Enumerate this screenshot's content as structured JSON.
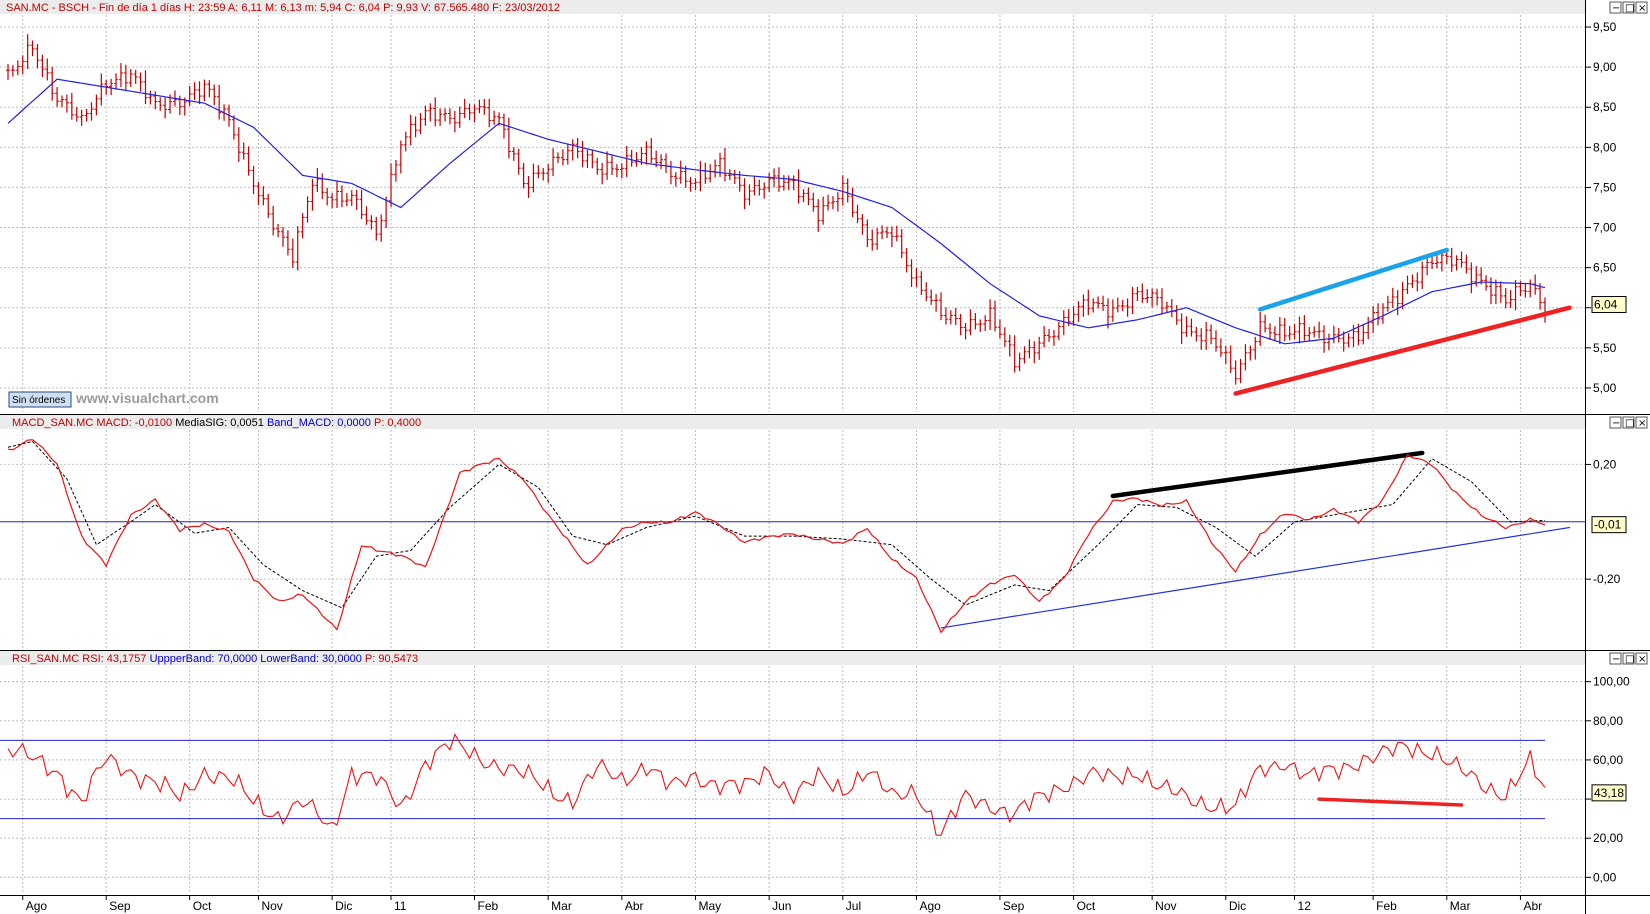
{
  "chart_data": [
    {
      "type": "line",
      "panel": "price",
      "title_parts": [
        {
          "text": "SAN.MC - BSCH - Fin de día 1 días",
          "color": "#c00000"
        },
        {
          "text": "H: 23:59",
          "color": "#c00000"
        },
        {
          "text": "A: 6,11",
          "color": "#c00000"
        },
        {
          "text": "M: 6,13",
          "color": "#c00000"
        },
        {
          "text": "m: 5,94",
          "color": "#c00000"
        },
        {
          "text": "C: 6,04",
          "color": "#c00000"
        },
        {
          "text": "P: 9,93",
          "color": "#c00000"
        },
        {
          "text": "V: 67.565.480",
          "color": "#c00000"
        },
        {
          "text": "F: 23/03/2012",
          "color": "#c00000"
        }
      ],
      "ylim": [
        4.7,
        9.65
      ],
      "y_ticks": [
        5.0,
        5.5,
        6.0,
        6.5,
        7.0,
        7.5,
        8.0,
        8.5,
        9.0,
        9.5
      ],
      "y_tick_labels": [
        "5,00",
        "5,50",
        "",
        "6,50",
        "7,00",
        "7,50",
        "8,00",
        "8,50",
        "9,00",
        "9,50"
      ],
      "last_value_label": "6,04",
      "last_value": 6.04,
      "price_keypoints": [
        [
          0,
          8.85
        ],
        [
          5,
          9.3
        ],
        [
          10,
          8.6
        ],
        [
          15,
          8.3
        ],
        [
          20,
          8.85
        ],
        [
          25,
          8.9
        ],
        [
          30,
          8.5
        ],
        [
          35,
          8.6
        ],
        [
          40,
          8.75
        ],
        [
          45,
          8.3
        ],
        [
          50,
          7.6
        ],
        [
          55,
          6.9
        ],
        [
          58,
          6.6
        ],
        [
          62,
          7.6
        ],
        [
          66,
          7.4
        ],
        [
          70,
          7.35
        ],
        [
          75,
          6.9
        ],
        [
          80,
          8.1
        ],
        [
          85,
          8.4
        ],
        [
          90,
          8.35
        ],
        [
          95,
          8.55
        ],
        [
          100,
          8.3
        ],
        [
          105,
          7.55
        ],
        [
          110,
          7.8
        ],
        [
          115,
          7.95
        ],
        [
          120,
          7.75
        ],
        [
          125,
          7.8
        ],
        [
          130,
          7.9
        ],
        [
          135,
          7.7
        ],
        [
          140,
          7.6
        ],
        [
          145,
          7.75
        ],
        [
          150,
          7.45
        ],
        [
          155,
          7.6
        ],
        [
          160,
          7.5
        ],
        [
          165,
          7.2
        ],
        [
          170,
          7.5
        ],
        [
          175,
          6.8
        ],
        [
          180,
          7.0
        ],
        [
          185,
          6.3
        ],
        [
          190,
          5.9
        ],
        [
          195,
          5.8
        ],
        [
          200,
          5.9
        ],
        [
          205,
          5.3
        ],
        [
          210,
          5.6
        ],
        [
          215,
          5.8
        ],
        [
          220,
          6.05
        ],
        [
          225,
          6.0
        ],
        [
          230,
          6.15
        ],
        [
          235,
          6.05
        ],
        [
          240,
          5.75
        ],
        [
          245,
          5.6
        ],
        [
          250,
          5.15
        ],
        [
          255,
          5.8
        ],
        [
          260,
          5.65
        ],
        [
          265,
          5.7
        ],
        [
          270,
          5.65
        ],
        [
          275,
          5.6
        ],
        [
          280,
          6.0
        ],
        [
          285,
          6.3
        ],
        [
          290,
          6.55
        ],
        [
          295,
          6.6
        ],
        [
          300,
          6.35
        ],
        [
          305,
          6.05
        ],
        [
          310,
          6.3
        ],
        [
          313,
          6.04
        ]
      ],
      "ma_keypoints": [
        [
          0,
          8.3
        ],
        [
          10,
          8.85
        ],
        [
          20,
          8.75
        ],
        [
          30,
          8.65
        ],
        [
          40,
          8.55
        ],
        [
          50,
          8.25
        ],
        [
          60,
          7.65
        ],
        [
          70,
          7.55
        ],
        [
          80,
          7.25
        ],
        [
          90,
          7.8
        ],
        [
          100,
          8.3
        ],
        [
          110,
          8.1
        ],
        [
          120,
          7.95
        ],
        [
          130,
          7.8
        ],
        [
          140,
          7.72
        ],
        [
          150,
          7.65
        ],
        [
          160,
          7.6
        ],
        [
          170,
          7.45
        ],
        [
          180,
          7.25
        ],
        [
          190,
          6.8
        ],
        [
          200,
          6.3
        ],
        [
          210,
          5.9
        ],
        [
          220,
          5.75
        ],
        [
          230,
          5.85
        ],
        [
          240,
          6.0
        ],
        [
          250,
          5.75
        ],
        [
          260,
          5.55
        ],
        [
          270,
          5.62
        ],
        [
          280,
          5.9
        ],
        [
          290,
          6.2
        ],
        [
          300,
          6.32
        ],
        [
          310,
          6.3
        ],
        [
          313,
          6.25
        ]
      ],
      "trendlines": [
        {
          "name": "resistance",
          "color": "#1aa3e8",
          "points": [
            [
              255,
              5.98
            ],
            [
              293,
              6.72
            ]
          ]
        },
        {
          "name": "support",
          "color": "#ee2222",
          "points": [
            [
              250,
              4.93
            ],
            [
              318,
              6.0
            ]
          ]
        }
      ]
    },
    {
      "type": "line",
      "panel": "macd",
      "title_parts": [
        {
          "text": "MACD_SAN.MC",
          "color": "#c00000"
        },
        {
          "text": "MACD: -0,0100",
          "color": "#c00000"
        },
        {
          "text": "MediaSIG: 0,0051",
          "color": "#000000"
        },
        {
          "text": "Band_MACD: 0,0000",
          "color": "#0000cc"
        },
        {
          "text": "P: 0,4000",
          "color": "#c00000"
        }
      ],
      "ylim": [
        -0.44,
        0.32
      ],
      "y_ticks": [
        0.2,
        -0.2
      ],
      "y_tick_labels": [
        "0,20",
        "-0,20"
      ],
      "last_value_label": "-0,01",
      "last_value": -0.01,
      "zero_line": 0,
      "macd_keypoints": [
        [
          0,
          0.25
        ],
        [
          5,
          0.29
        ],
        [
          10,
          0.2
        ],
        [
          15,
          -0.05
        ],
        [
          20,
          -0.15
        ],
        [
          25,
          0.02
        ],
        [
          30,
          0.08
        ],
        [
          35,
          -0.03
        ],
        [
          40,
          -0.01
        ],
        [
          45,
          -0.03
        ],
        [
          50,
          -0.2
        ],
        [
          55,
          -0.28
        ],
        [
          60,
          -0.25
        ],
        [
          67,
          -0.38
        ],
        [
          72,
          -0.08
        ],
        [
          80,
          -0.12
        ],
        [
          85,
          -0.16
        ],
        [
          92,
          0.17
        ],
        [
          100,
          0.22
        ],
        [
          105,
          0.15
        ],
        [
          110,
          0.02
        ],
        [
          118,
          -0.15
        ],
        [
          125,
          -0.03
        ],
        [
          130,
          0.0
        ],
        [
          135,
          0.0
        ],
        [
          140,
          0.03
        ],
        [
          145,
          -0.01
        ],
        [
          150,
          -0.07
        ],
        [
          160,
          -0.04
        ],
        [
          170,
          -0.08
        ],
        [
          175,
          -0.02
        ],
        [
          180,
          -0.13
        ],
        [
          185,
          -0.2
        ],
        [
          190,
          -0.38
        ],
        [
          195,
          -0.28
        ],
        [
          200,
          -0.22
        ],
        [
          205,
          -0.18
        ],
        [
          210,
          -0.28
        ],
        [
          215,
          -0.2
        ],
        [
          220,
          -0.04
        ],
        [
          225,
          0.07
        ],
        [
          230,
          0.08
        ],
        [
          235,
          0.06
        ],
        [
          240,
          0.07
        ],
        [
          245,
          -0.07
        ],
        [
          250,
          -0.17
        ],
        [
          255,
          -0.05
        ],
        [
          260,
          0.03
        ],
        [
          265,
          0.01
        ],
        [
          270,
          0.04
        ],
        [
          275,
          0.0
        ],
        [
          280,
          0.08
        ],
        [
          285,
          0.23
        ],
        [
          290,
          0.2
        ],
        [
          295,
          0.1
        ],
        [
          300,
          0.02
        ],
        [
          305,
          -0.02
        ],
        [
          310,
          0.01
        ],
        [
          313,
          -0.01
        ]
      ],
      "signal_keypoints": [
        [
          0,
          0.26
        ],
        [
          5,
          0.28
        ],
        [
          12,
          0.15
        ],
        [
          18,
          -0.08
        ],
        [
          25,
          0.0
        ],
        [
          30,
          0.06
        ],
        [
          38,
          -0.04
        ],
        [
          45,
          -0.02
        ],
        [
          52,
          -0.15
        ],
        [
          60,
          -0.24
        ],
        [
          68,
          -0.3
        ],
        [
          75,
          -0.12
        ],
        [
          82,
          -0.1
        ],
        [
          90,
          0.05
        ],
        [
          100,
          0.2
        ],
        [
          108,
          0.12
        ],
        [
          115,
          -0.05
        ],
        [
          122,
          -0.08
        ],
        [
          130,
          -0.02
        ],
        [
          140,
          0.02
        ],
        [
          150,
          -0.05
        ],
        [
          160,
          -0.05
        ],
        [
          170,
          -0.06
        ],
        [
          180,
          -0.08
        ],
        [
          188,
          -0.2
        ],
        [
          195,
          -0.29
        ],
        [
          205,
          -0.22
        ],
        [
          212,
          -0.24
        ],
        [
          222,
          -0.08
        ],
        [
          230,
          0.06
        ],
        [
          238,
          0.05
        ],
        [
          246,
          -0.02
        ],
        [
          254,
          -0.12
        ],
        [
          262,
          0.0
        ],
        [
          272,
          0.03
        ],
        [
          282,
          0.06
        ],
        [
          290,
          0.22
        ],
        [
          298,
          0.14
        ],
        [
          306,
          0.0
        ],
        [
          313,
          0.005
        ]
      ],
      "trendlines": [
        {
          "name": "macd-bearish-divergence",
          "color": "#000000",
          "points": [
            [
              225,
              0.09
            ],
            [
              288,
              0.24
            ]
          ]
        },
        {
          "name": "macd-support",
          "color": "#2233dd",
          "points": [
            [
              190,
              -0.37
            ],
            [
              318,
              -0.02
            ]
          ]
        }
      ]
    },
    {
      "type": "line",
      "panel": "rsi",
      "title_parts": [
        {
          "text": "RSI_SAN.MC",
          "color": "#c00000"
        },
        {
          "text": "RSI: 43,1757",
          "color": "#c00000"
        },
        {
          "text": "UppperBand: 70,0000",
          "color": "#0000cc"
        },
        {
          "text": "LowerBand: 30,0000",
          "color": "#0000cc"
        },
        {
          "text": "P: 90,5473",
          "color": "#c00000"
        }
      ],
      "ylim": [
        -8,
        108
      ],
      "y_ticks": [
        0,
        20,
        40,
        60,
        80,
        100
      ],
      "y_tick_labels": [
        "0,00",
        "20,00",
        "",
        "60,00",
        "80,00",
        "100,00"
      ],
      "last_value_label": "43,18",
      "last_value": 43.18,
      "bands": [
        70,
        30
      ],
      "rsi_keypoints": [
        [
          0,
          65
        ],
        [
          5,
          60
        ],
        [
          10,
          55
        ],
        [
          15,
          38
        ],
        [
          20,
          60
        ],
        [
          25,
          55
        ],
        [
          30,
          48
        ],
        [
          35,
          40
        ],
        [
          40,
          55
        ],
        [
          45,
          50
        ],
        [
          50,
          38
        ],
        [
          55,
          32
        ],
        [
          60,
          38
        ],
        [
          66,
          24
        ],
        [
          70,
          55
        ],
        [
          75,
          50
        ],
        [
          80,
          35
        ],
        [
          85,
          60
        ],
        [
          90,
          68
        ],
        [
          95,
          62
        ],
        [
          100,
          58
        ],
        [
          105,
          52
        ],
        [
          110,
          45
        ],
        [
          115,
          40
        ],
        [
          120,
          55
        ],
        [
          125,
          50
        ],
        [
          130,
          58
        ],
        [
          135,
          45
        ],
        [
          140,
          52
        ],
        [
          145,
          48
        ],
        [
          150,
          45
        ],
        [
          155,
          55
        ],
        [
          160,
          42
        ],
        [
          165,
          50
        ],
        [
          170,
          45
        ],
        [
          175,
          55
        ],
        [
          180,
          40
        ],
        [
          185,
          45
        ],
        [
          190,
          22
        ],
        [
          195,
          40
        ],
        [
          200,
          38
        ],
        [
          205,
          32
        ],
        [
          210,
          40
        ],
        [
          215,
          48
        ],
        [
          220,
          52
        ],
        [
          225,
          50
        ],
        [
          230,
          55
        ],
        [
          235,
          45
        ],
        [
          240,
          40
        ],
        [
          245,
          38
        ],
        [
          250,
          35
        ],
        [
          255,
          55
        ],
        [
          260,
          60
        ],
        [
          265,
          50
        ],
        [
          270,
          55
        ],
        [
          275,
          60
        ],
        [
          280,
          62
        ],
        [
          285,
          67
        ],
        [
          290,
          65
        ],
        [
          295,
          55
        ],
        [
          300,
          48
        ],
        [
          305,
          43
        ],
        [
          310,
          58
        ],
        [
          313,
          43
        ]
      ],
      "trendlines": [
        {
          "name": "rsi-support",
          "color": "#ee2222",
          "points": [
            [
              267,
              40
            ],
            [
              296,
              37
            ]
          ]
        }
      ]
    }
  ],
  "x_axis": {
    "n_bars": 314,
    "months": [
      {
        "label": "Ago",
        "bar": 3
      },
      {
        "label": "Sep",
        "bar": 20
      },
      {
        "label": "Oct",
        "bar": 37
      },
      {
        "label": "Nov",
        "bar": 51
      },
      {
        "label": "Dic",
        "bar": 66
      },
      {
        "label": "11",
        "bar": 78
      },
      {
        "label": "Feb",
        "bar": 95
      },
      {
        "label": "Mar",
        "bar": 110
      },
      {
        "label": "Abr",
        "bar": 125
      },
      {
        "label": "May",
        "bar": 140
      },
      {
        "label": "Jun",
        "bar": 155
      },
      {
        "label": "Jul",
        "bar": 170
      },
      {
        "label": "Ago",
        "bar": 185
      },
      {
        "label": "Sep",
        "bar": 202
      },
      {
        "label": "Oct",
        "bar": 217
      },
      {
        "label": "Nov",
        "bar": 233
      },
      {
        "label": "Dic",
        "bar": 248
      },
      {
        "label": "12",
        "bar": 262
      },
      {
        "label": "Feb",
        "bar": 278
      },
      {
        "label": "Mar",
        "bar": 293
      },
      {
        "label": "Abr",
        "bar": 308
      }
    ]
  },
  "ui": {
    "orders_button": "Sin órdenes",
    "watermark": "www.visualchart.com",
    "panel_controls": [
      "−",
      "□",
      "×"
    ]
  },
  "colors": {
    "price_bar": "#c00000",
    "ma": "#2020ee",
    "macd": "#ee1111",
    "signal": "#000000",
    "band": "#2222cc",
    "rsi": "#ee1111",
    "grid": "#bdbdbd",
    "title_bg": "#e8e8e8"
  }
}
